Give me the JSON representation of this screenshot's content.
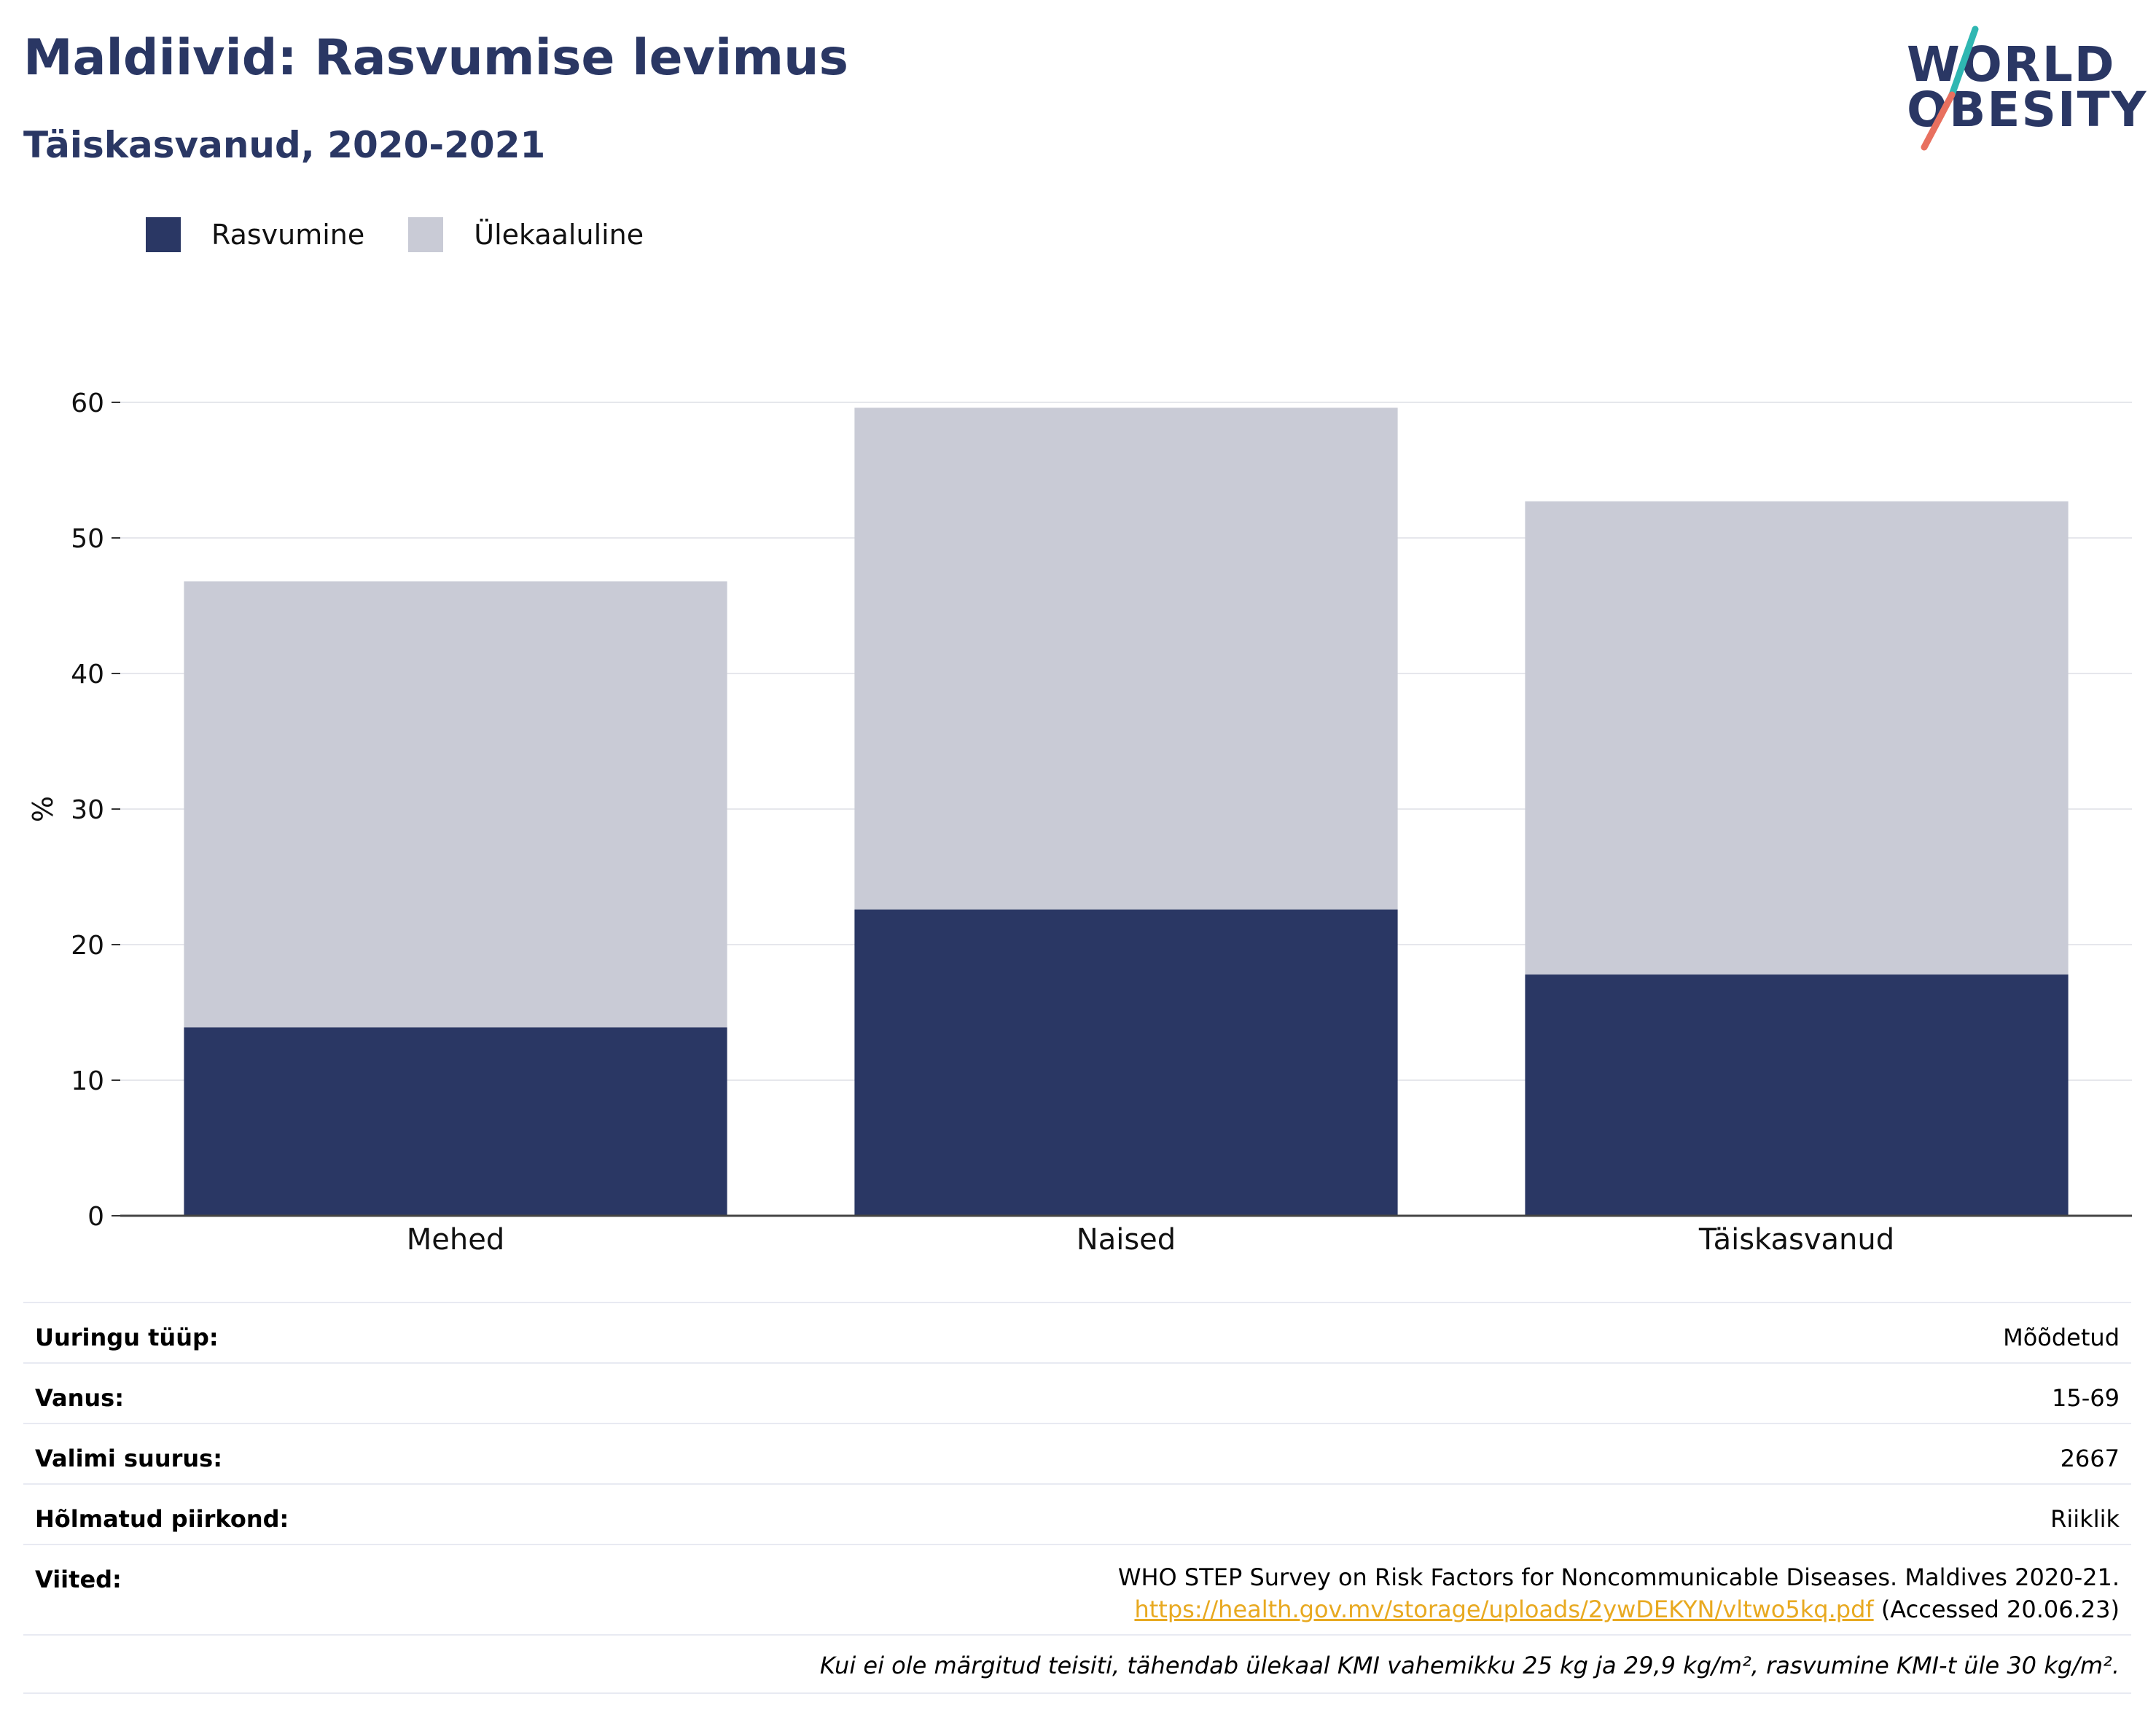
{
  "header": {
    "title": "Maldiivid: Rasvumise levimus",
    "subtitle": "Täiskasvanud, 2020-2021"
  },
  "logo": {
    "line1": "WORLD",
    "line2": "OBESITY"
  },
  "colors": {
    "obesity": "#2a3764",
    "overweight": "#c9cbd6",
    "brand_teal": "#2fb7b2",
    "brand_coral": "#e8705f",
    "link": "#e8a920"
  },
  "chart_data": {
    "type": "bar",
    "stacked": true,
    "categories": [
      "Mehed",
      "Naised",
      "Täiskasvanud"
    ],
    "series": [
      {
        "name": "Rasvumine",
        "values": [
          13.9,
          22.6,
          17.8
        ]
      },
      {
        "name": "Ülekaaluline",
        "values": [
          32.9,
          37.0,
          34.9
        ]
      }
    ],
    "ylabel": "%",
    "ylim": [
      0,
      60
    ],
    "yticks": [
      0,
      10,
      20,
      30,
      40,
      50,
      60
    ],
    "grid": true,
    "legend_position": "top-left"
  },
  "info": {
    "rows": [
      {
        "key": "Uuringu tüüp:",
        "value": "Mõõdetud"
      },
      {
        "key": "Vanus:",
        "value": "15-69"
      },
      {
        "key": "Valimi suurus:",
        "value": "2667"
      },
      {
        "key": "Hõlmatud piirkond:",
        "value": "Riiklik"
      }
    ],
    "references": {
      "key": "Viited:",
      "line1": "WHO STEP Survey on Risk Factors for Noncommunicable Diseases. Maldives 2020-21.",
      "url": "https://health.gov.mv/storage/uploads/2ywDEKYN/vltwo5kq.pdf",
      "accessed": " (Accessed 20.06.23)"
    },
    "footnote": "Kui ei ole märgitud teisiti, tähendab ülekaal KMI vahemikku 25 kg ja 29,9 kg/m², rasvumine KMI-t üle 30 kg/m²."
  }
}
